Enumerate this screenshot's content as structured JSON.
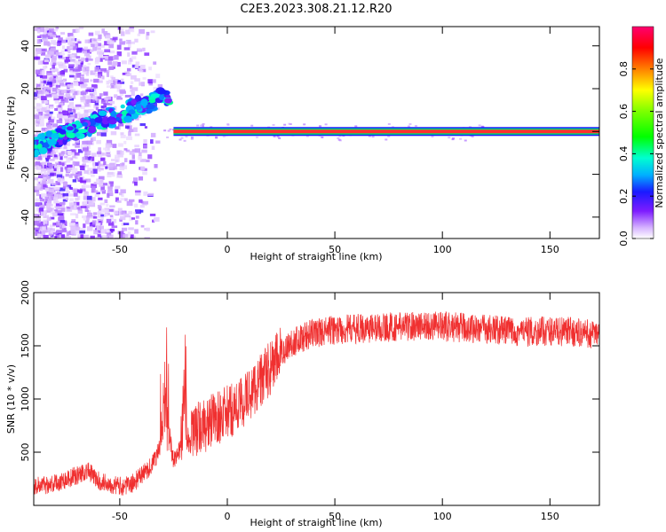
{
  "figure": {
    "title": "C2E3.2023.308.21.12.R20"
  },
  "chart_data": [
    {
      "type": "heatmap",
      "title": "C2E3.2023.308.21.12.R20",
      "xlabel": "Height of straight line (km)",
      "ylabel": "Frequency (Hz)",
      "xlim": [
        -90,
        173
      ],
      "ylim": [
        -50,
        49
      ],
      "x_ticks": [
        -50,
        0,
        50,
        100,
        150
      ],
      "y_ticks": [
        -40,
        -20,
        0,
        20,
        40
      ],
      "colorbar": {
        "label": "Normalized spectral amplitude",
        "range": [
          0,
          1
        ],
        "ticks": [
          "0.0",
          "0.2",
          "0.4",
          "0.6",
          "0.8"
        ]
      },
      "features": [
        {
          "description": "strong line",
          "x_range": [
            -25,
            173
          ],
          "frequency": 0,
          "amplitude": 1.0
        },
        {
          "description": "rising band",
          "x_range": [
            -90,
            -27
          ],
          "frequency_range": [
            -7,
            17
          ],
          "amplitude": 0.35
        }
      ],
      "grid": false
    },
    {
      "type": "line",
      "xlabel": "Height of straight line (km)",
      "ylabel": "SNR (10 * v/v)",
      "xlim": [
        -90,
        173
      ],
      "ylim": [
        0,
        2000
      ],
      "x_ticks": [
        -50,
        0,
        50,
        100,
        150
      ],
      "y_ticks": [
        500,
        1000,
        1500,
        2000
      ],
      "color": "#f03030",
      "grid": false,
      "series": [
        {
          "x": [
            -90,
            -80,
            -70,
            -65,
            -60,
            -50,
            -45,
            -40,
            -35,
            -31,
            -29,
            -27,
            -25,
            -22,
            -20,
            -18,
            -15,
            -10,
            -5,
            0,
            5,
            10,
            15,
            20,
            25,
            30,
            35,
            40,
            50,
            60,
            70,
            80,
            90,
            100,
            110,
            120,
            130,
            140,
            150,
            160,
            173
          ],
          "y": [
            180,
            210,
            280,
            330,
            230,
            180,
            190,
            280,
            380,
            560,
            950,
            600,
            430,
            520,
            900,
            580,
            700,
            760,
            820,
            870,
            930,
            1040,
            1160,
            1290,
            1430,
            1530,
            1580,
            1620,
            1650,
            1660,
            1670,
            1680,
            1690,
            1680,
            1670,
            1660,
            1640,
            1630,
            1640,
            1630,
            1600
          ]
        }
      ]
    }
  ]
}
